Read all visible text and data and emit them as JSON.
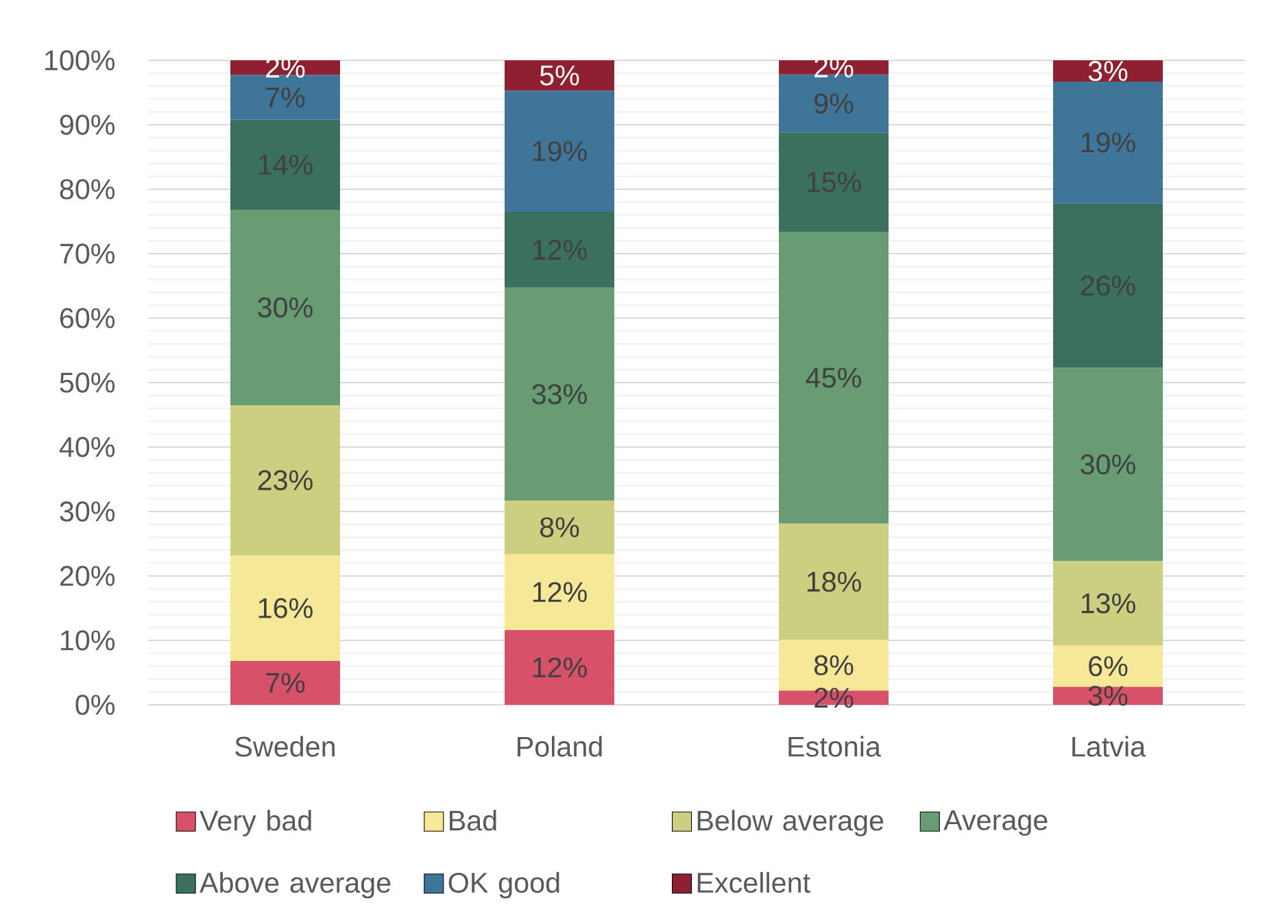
{
  "chart_data": {
    "type": "bar",
    "stacked": true,
    "categories": [
      "Sweden",
      "Poland",
      "Estonia",
      "Latvia"
    ],
    "series": [
      {
        "name": "Very bad",
        "color": "#d75169",
        "values": [
          6.8,
          11.6,
          2.2,
          2.8
        ],
        "value_labels": [
          "7%",
          "12%",
          "2%",
          "3%"
        ]
      },
      {
        "name": "Bad",
        "color": "#f6e897",
        "values": [
          16.4,
          11.8,
          7.9,
          6.4
        ],
        "value_labels": [
          "16%",
          "12%",
          "8%",
          "6%"
        ]
      },
      {
        "name": "Below average",
        "color": "#cbcf7f",
        "values": [
          23.3,
          8.3,
          18.0,
          13.1
        ],
        "value_labels": [
          "23%",
          "8%",
          "18%",
          "13%"
        ]
      },
      {
        "name": "Average",
        "color": "#689c72",
        "values": [
          30.3,
          33.0,
          45.3,
          30.0
        ],
        "value_labels": [
          "30%",
          "33%",
          "45%",
          "30%"
        ]
      },
      {
        "name": "Above average",
        "color": "#3b705f",
        "values": [
          14.0,
          11.8,
          15.4,
          25.5
        ],
        "value_labels": [
          "14%",
          "12%",
          "15%",
          "26%"
        ]
      },
      {
        "name": "OK good",
        "color": "#3f7598",
        "values": [
          6.9,
          18.8,
          9.0,
          18.9
        ],
        "value_labels": [
          "7%",
          "19%",
          "9%",
          "19%"
        ]
      },
      {
        "name": "Excellent",
        "color": "#8e2031",
        "values": [
          2.3,
          4.7,
          2.2,
          3.3
        ],
        "value_labels": [
          "2%",
          "5%",
          "2%",
          "3%"
        ]
      }
    ],
    "ylim": [
      0,
      100
    ],
    "yticks": [
      {
        "value": 0,
        "label": "0%"
      },
      {
        "value": 10,
        "label": "10%"
      },
      {
        "value": 20,
        "label": "20%"
      },
      {
        "value": 30,
        "label": "30%"
      },
      {
        "value": 40,
        "label": "40%"
      },
      {
        "value": 50,
        "label": "50%"
      },
      {
        "value": 60,
        "label": "60%"
      },
      {
        "value": 70,
        "label": "70%"
      },
      {
        "value": 80,
        "label": "80%"
      },
      {
        "value": 90,
        "label": "90%"
      },
      {
        "value": 100,
        "label": "100%"
      }
    ],
    "grid": "y",
    "legend": "bottom"
  }
}
